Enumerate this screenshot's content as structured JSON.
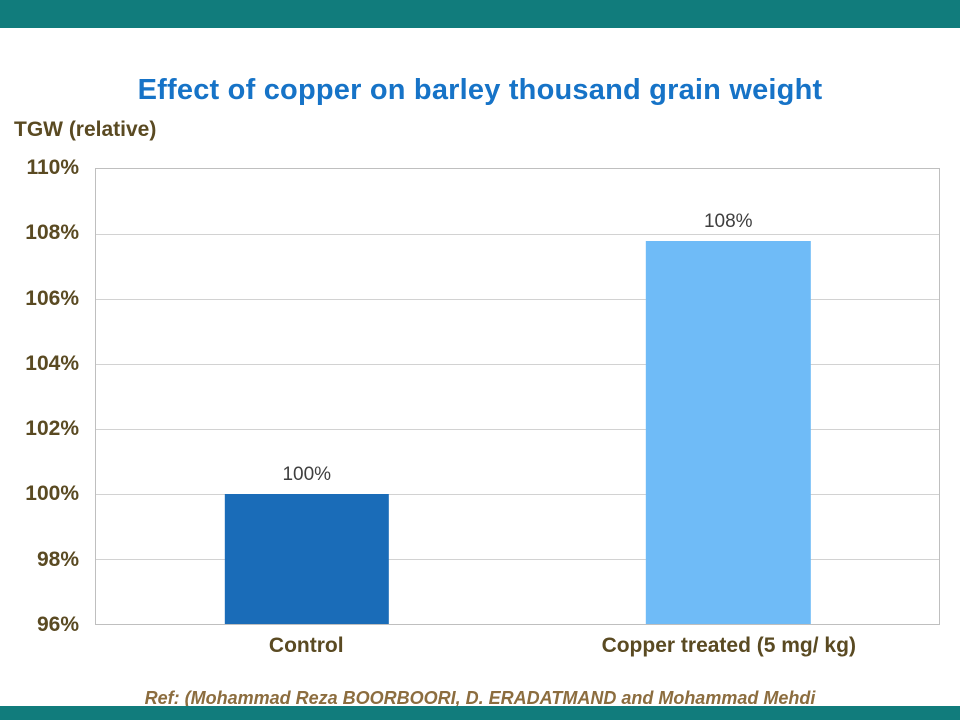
{
  "slide": {
    "title": "Effect of copper on barley thousand grain weight",
    "footer_ref": "Ref: (Mohammad Reza BOORBOORI,  D. ERADATMAND and Mohammad Mehdi"
  },
  "chart_data": {
    "type": "bar",
    "title": "Effect of copper on barley thousand grain weight",
    "ylabel": "TGW (relative)",
    "xlabel": "",
    "categories": [
      "Control",
      "Copper treated (5 mg/ kg)"
    ],
    "values": [
      100,
      107.8
    ],
    "data_labels": [
      "100%",
      "108%"
    ],
    "ylim": [
      96,
      110
    ],
    "ytick_step": 2,
    "yticks": [
      {
        "value": 110,
        "label": "110%"
      },
      {
        "value": 108,
        "label": "108%"
      },
      {
        "value": 106,
        "label": "106%"
      },
      {
        "value": 104,
        "label": "104%"
      },
      {
        "value": 102,
        "label": "102%"
      },
      {
        "value": 100,
        "label": "100%"
      },
      {
        "value": 98,
        "label": "98%"
      },
      {
        "value": 96,
        "label": "96%"
      }
    ],
    "grid": true,
    "legend": "none",
    "bar_colors": [
      "#1a6cb8",
      "#6fbbf7"
    ]
  },
  "colors": {
    "band": "#117c7c",
    "title": "#1673c7",
    "axis_text": "#5a4a22",
    "footer_text": "#8c6d3f",
    "gridline": "#d2d2d2",
    "data_label": "#3f3f3f",
    "plot_border": "#bfbfbf"
  }
}
